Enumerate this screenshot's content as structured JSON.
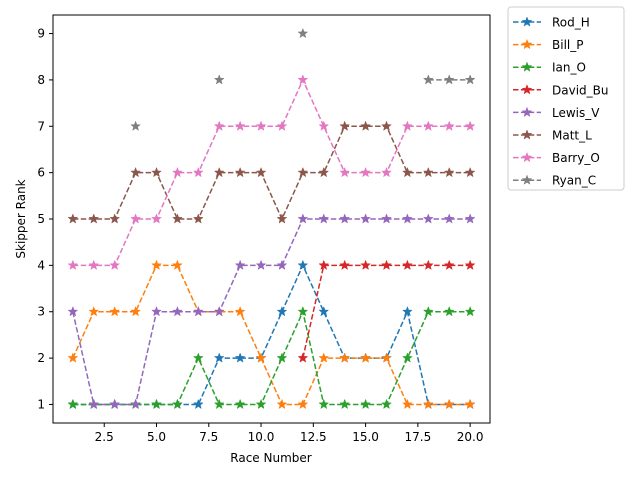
{
  "chart_data": {
    "type": "line",
    "title": "",
    "xlabel": "Race Number",
    "ylabel": "Skipper Rank",
    "xlim": [
      0.05,
      20.95
    ],
    "ylim": [
      0.6,
      9.4
    ],
    "xticks": [
      2.5,
      5.0,
      7.5,
      10.0,
      12.5,
      15.0,
      17.5,
      20.0
    ],
    "xtick_labels": [
      "2.5",
      "5.0",
      "7.5",
      "10.0",
      "12.5",
      "15.0",
      "17.5",
      "20.0"
    ],
    "yticks": [
      1,
      2,
      3,
      4,
      5,
      6,
      7,
      8,
      9
    ],
    "ytick_labels": [
      "1",
      "2",
      "3",
      "4",
      "5",
      "6",
      "7",
      "8",
      "9"
    ],
    "grid": false,
    "legend_position": "outside upper right",
    "line_style": "dashed",
    "marker": "star",
    "x": [
      1,
      2,
      3,
      4,
      5,
      6,
      7,
      8,
      9,
      10,
      11,
      12,
      13,
      14,
      15,
      16,
      17,
      18,
      19,
      20
    ],
    "series": [
      {
        "name": "Rod_H",
        "color": "#1f77b4",
        "values": [
          1,
          1,
          1,
          1,
          1,
          1,
          1,
          2,
          2,
          2,
          3,
          4,
          3,
          2,
          2,
          2,
          3,
          1,
          1,
          1
        ]
      },
      {
        "name": "Bill_P",
        "color": "#ff7f0e",
        "values": [
          2,
          3,
          3,
          3,
          4,
          4,
          3,
          3,
          3,
          2,
          1,
          1,
          2,
          2,
          2,
          2,
          1,
          1,
          1,
          1
        ]
      },
      {
        "name": "Ian_O",
        "color": "#2ca02c",
        "values": [
          1,
          1,
          1,
          1,
          1,
          1,
          2,
          1,
          1,
          1,
          2,
          3,
          1,
          1,
          1,
          1,
          2,
          3,
          3,
          3
        ]
      },
      {
        "name": "David_Bu",
        "color": "#d62728",
        "values": [
          null,
          null,
          null,
          null,
          null,
          null,
          null,
          null,
          null,
          null,
          null,
          2,
          4,
          4,
          4,
          4,
          4,
          4,
          4,
          4
        ]
      },
      {
        "name": "Lewis_V",
        "color": "#9467bd",
        "values": [
          3,
          1,
          1,
          1,
          3,
          3,
          3,
          3,
          4,
          4,
          4,
          5,
          5,
          5,
          5,
          5,
          5,
          5,
          5,
          5
        ]
      },
      {
        "name": "Matt_L",
        "color": "#8c564b",
        "values": [
          5,
          5,
          5,
          6,
          6,
          5,
          5,
          6,
          6,
          6,
          5,
          6,
          6,
          7,
          7,
          7,
          6,
          6,
          6,
          6
        ]
      },
      {
        "name": "Barry_O",
        "color": "#e377c2",
        "values": [
          4,
          4,
          4,
          5,
          5,
          6,
          6,
          7,
          7,
          7,
          7,
          8,
          7,
          6,
          6,
          6,
          7,
          7,
          7,
          7
        ]
      },
      {
        "name": "Ryan_C",
        "color": "#7f7f7f",
        "values": [
          null,
          null,
          null,
          7,
          null,
          null,
          null,
          8,
          null,
          null,
          null,
          9,
          null,
          null,
          null,
          null,
          null,
          8,
          8,
          8
        ]
      }
    ]
  }
}
